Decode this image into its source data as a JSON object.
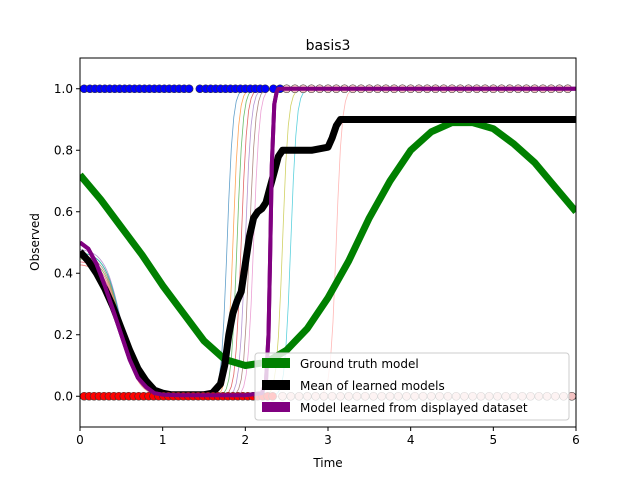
{
  "chart_data": {
    "type": "line",
    "title": "basis3",
    "xlabel": "Time",
    "ylabel": "Observed",
    "xlim": [
      0,
      6
    ],
    "ylim": [
      -0.1,
      1.1
    ],
    "xticks": [
      0,
      1,
      2,
      3,
      4,
      5,
      6
    ],
    "xtick_labels": [
      "0",
      "1",
      "2",
      "3",
      "4",
      "5",
      "6"
    ],
    "yticks": [
      0.0,
      0.2,
      0.4,
      0.6,
      0.8,
      1.0
    ],
    "ytick_labels": [
      "0.0",
      "0.2",
      "0.4",
      "0.6",
      "0.8",
      "1.0"
    ],
    "grid": false,
    "legend_placement": "lower-right",
    "legend": [
      {
        "label": "Ground truth model",
        "color": "#008000"
      },
      {
        "label": "Mean of learned models",
        "color": "#000000"
      },
      {
        "label": "Model learned from displayed dataset",
        "color": "#800080"
      }
    ],
    "series": [
      {
        "name": "Ground truth model",
        "color": "#008000",
        "x": [
          0,
          0.25,
          0.5,
          0.75,
          1.0,
          1.25,
          1.5,
          1.75,
          2.0,
          2.25,
          2.5,
          2.75,
          3.0,
          3.25,
          3.5,
          3.75,
          4.0,
          4.25,
          4.5,
          4.75,
          5.0,
          5.25,
          5.5,
          5.75,
          6.0
        ],
        "y": [
          0.72,
          0.64,
          0.55,
          0.46,
          0.36,
          0.27,
          0.18,
          0.12,
          0.1,
          0.11,
          0.15,
          0.22,
          0.32,
          0.44,
          0.58,
          0.7,
          0.8,
          0.86,
          0.89,
          0.89,
          0.87,
          0.82,
          0.76,
          0.68,
          0.6
        ]
      },
      {
        "name": "Mean of learned models",
        "color": "#000000",
        "x": [
          0,
          0.1,
          0.2,
          0.3,
          0.4,
          0.5,
          0.6,
          0.7,
          0.8,
          0.9,
          1.0,
          1.1,
          1.3,
          1.5,
          1.6,
          1.7,
          1.75,
          1.8,
          1.85,
          1.9,
          1.95,
          2.0,
          2.05,
          2.1,
          2.15,
          2.2,
          2.25,
          2.3,
          2.35,
          2.4,
          2.45,
          2.5,
          2.6,
          2.8,
          3.0,
          3.05,
          3.1,
          3.15,
          3.2,
          3.3,
          4.0,
          5.0,
          6.0
        ],
        "y": [
          0.47,
          0.44,
          0.4,
          0.35,
          0.29,
          0.22,
          0.15,
          0.09,
          0.05,
          0.02,
          0.01,
          0.005,
          0.005,
          0.005,
          0.01,
          0.04,
          0.1,
          0.2,
          0.27,
          0.31,
          0.34,
          0.43,
          0.52,
          0.58,
          0.6,
          0.61,
          0.63,
          0.68,
          0.73,
          0.78,
          0.8,
          0.8,
          0.8,
          0.8,
          0.81,
          0.84,
          0.88,
          0.9,
          0.9,
          0.9,
          0.9,
          0.9,
          0.9
        ]
      },
      {
        "name": "Model learned from displayed dataset",
        "color": "#800080",
        "x": [
          0,
          0.1,
          0.2,
          0.3,
          0.4,
          0.5,
          0.6,
          0.7,
          0.8,
          0.9,
          1.0,
          1.2,
          1.5,
          2.0,
          2.2,
          2.25,
          2.28,
          2.3,
          2.32,
          2.35,
          2.38,
          2.4,
          2.5,
          3.0,
          4.0,
          5.0,
          6.0
        ],
        "y": [
          0.5,
          0.48,
          0.43,
          0.36,
          0.28,
          0.2,
          0.12,
          0.06,
          0.03,
          0.01,
          0.005,
          0.003,
          0.003,
          0.003,
          0.01,
          0.05,
          0.2,
          0.45,
          0.75,
          0.95,
          0.99,
          1.0,
          1.0,
          1.0,
          1.0,
          1.0,
          1.0
        ]
      }
    ],
    "individual_models": {
      "colors": [
        "#1f77b4",
        "#ff7f0e",
        "#2ca02c",
        "#d62728",
        "#9467bd",
        "#8c564b",
        "#e377c2",
        "#bcbd22",
        "#17becf",
        "#ff9896"
      ],
      "transition_times": [
        1.78,
        1.85,
        1.9,
        1.95,
        2.0,
        2.05,
        2.1,
        2.45,
        2.55,
        3.1
      ],
      "start_values": [
        0.45,
        0.44,
        0.47,
        0.43,
        0.48,
        0.46,
        0.44,
        0.45,
        0.47,
        0.43
      ]
    },
    "observations": {
      "observed_one": {
        "color": "#0000ff",
        "y": 1.0,
        "x": [
          0.05,
          0.12,
          0.18,
          0.24,
          0.3,
          0.36,
          0.42,
          0.48,
          0.54,
          0.6,
          0.66,
          0.72,
          0.78,
          0.84,
          0.9,
          0.96,
          1.02,
          1.08,
          1.14,
          1.2,
          1.26,
          1.32,
          1.45,
          1.52,
          1.58,
          1.64,
          1.7,
          1.76,
          1.82,
          1.88,
          1.94,
          2.0,
          2.06,
          2.12,
          2.18,
          2.24,
          2.34,
          2.42
        ]
      },
      "observed_one_light": {
        "color": "#f4c2c2",
        "y": 1.0,
        "x": [
          2.5,
          2.6,
          2.7,
          2.8,
          2.9,
          3.0,
          3.1,
          3.2,
          3.3,
          3.4,
          3.5,
          3.6,
          3.7,
          3.8,
          3.9,
          4.0,
          4.1,
          4.2,
          4.3,
          4.4,
          4.5,
          4.6,
          4.7,
          4.8,
          4.9,
          5.0,
          5.1,
          5.2,
          5.3,
          5.4,
          5.5,
          5.6,
          5.7,
          5.8,
          5.9
        ]
      },
      "observed_zero": {
        "color": "#ff0000",
        "y": 0.0,
        "x": [
          0.05,
          0.11,
          0.17,
          0.23,
          0.29,
          0.35,
          0.41,
          0.47,
          0.53,
          0.59,
          0.65,
          0.71,
          0.77,
          0.83,
          0.89,
          0.95,
          1.01,
          1.07,
          1.13,
          1.19,
          1.25,
          1.31,
          1.37,
          1.43,
          1.49,
          1.55,
          1.61,
          1.67,
          1.73,
          1.79,
          1.85,
          1.91,
          1.97,
          2.03,
          2.09,
          2.15,
          2.21,
          2.27,
          2.33
        ]
      },
      "observed_zero_light": {
        "color": "#f4c2c2",
        "y": 0.0,
        "x": [
          2.45,
          2.55,
          2.65,
          2.75,
          2.85,
          2.95,
          3.05,
          3.15,
          3.25,
          3.35,
          3.45,
          3.55,
          3.65,
          3.75,
          3.85,
          3.95,
          4.05,
          4.15,
          4.25,
          4.35,
          4.45,
          4.55,
          4.65,
          4.75,
          4.85,
          4.95,
          5.05,
          5.15,
          5.25,
          5.35,
          5.45,
          5.55,
          5.65,
          5.75,
          5.85,
          5.95
        ]
      }
    }
  }
}
